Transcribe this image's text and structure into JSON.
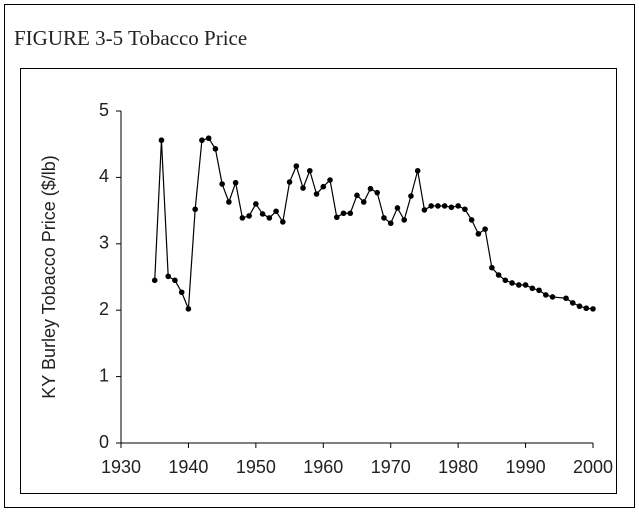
{
  "chart_data": {
    "type": "line",
    "title": "FIGURE 3-5 Tobacco Price",
    "y_label": "KY Burley Tobacco Price ($/lb)",
    "color": "#000000",
    "x": [
      1935,
      1936,
      1937,
      1938,
      1939,
      1940,
      1941,
      1942,
      1943,
      1944,
      1945,
      1946,
      1947,
      1948,
      1949,
      1950,
      1951,
      1952,
      1953,
      1954,
      1955,
      1956,
      1957,
      1958,
      1959,
      1960,
      1961,
      1962,
      1963,
      1964,
      1965,
      1966,
      1967,
      1968,
      1969,
      1970,
      1971,
      1972,
      1973,
      1974,
      1975,
      1976,
      1977,
      1978,
      1979,
      1980,
      1981,
      1982,
      1983,
      1984,
      1985,
      1986,
      1987,
      1988,
      1989,
      1990,
      1991,
      1992,
      1993,
      1994,
      1996,
      1997,
      1998,
      1999,
      2000
    ],
    "values": [
      2.45,
      4.56,
      2.51,
      2.45,
      2.27,
      2.02,
      3.52,
      4.56,
      4.59,
      4.43,
      3.9,
      3.63,
      3.92,
      3.39,
      3.42,
      3.6,
      3.45,
      3.39,
      3.49,
      3.33,
      3.93,
      4.17,
      3.84,
      4.1,
      3.75,
      3.86,
      3.96,
      3.4,
      3.46,
      3.46,
      3.73,
      3.63,
      3.83,
      3.77,
      3.39,
      3.31,
      3.54,
      3.36,
      3.72,
      4.1,
      3.51,
      3.57,
      3.57,
      3.57,
      3.55,
      3.57,
      3.52,
      3.36,
      3.15,
      3.22,
      2.64,
      2.53,
      2.45,
      2.41,
      2.38,
      2.38,
      2.33,
      2.3,
      2.23,
      2.2,
      2.18,
      2.11,
      2.06,
      2.03,
      2.02
    ],
    "xlim": [
      1930,
      2000
    ],
    "xticks": [
      1930,
      1940,
      1950,
      1960,
      1970,
      1980,
      1990,
      2000
    ],
    "ylim": [
      0,
      5
    ],
    "yticks": [
      0,
      1,
      2,
      3,
      4,
      5
    ]
  }
}
